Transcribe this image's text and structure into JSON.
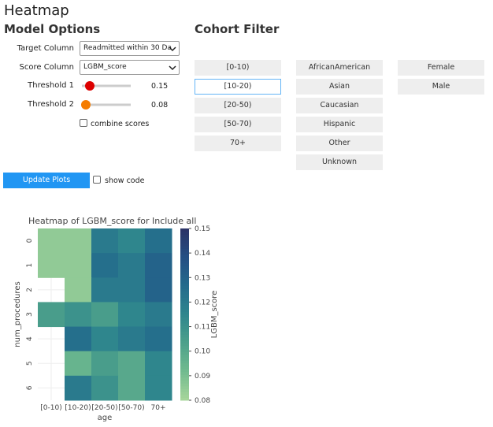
{
  "header": {
    "title": "Heatmap"
  },
  "model_options": {
    "title": "Model Options",
    "target_label": "Target Column",
    "target_value": "Readmitted within 30 Da",
    "score_label": "Score Column",
    "score_value": "LGBM_score",
    "threshold1_label": "Threshold 1",
    "threshold1_value": 0.15,
    "threshold2_label": "Threshold 2",
    "threshold2_value": 0.08,
    "combine_label": "combine scores"
  },
  "cohort_filter": {
    "title": "Cohort Filter",
    "columns": [
      [
        "[0-10)",
        "[10-20)",
        "[20-50)",
        "[50-70)",
        "70+"
      ],
      [
        "AfricanAmerican",
        "Asian",
        "Caucasian",
        "Hispanic",
        "Other",
        "Unknown"
      ],
      [
        "Female",
        "Male"
      ]
    ]
  },
  "actions": {
    "update_button": "Update Plots",
    "show_code": "show code"
  },
  "chart_data": {
    "type": "heatmap",
    "title": "Heatmap of LGBM_score for Include all",
    "x_label": "age",
    "y_label": "num_procedures",
    "colorbar_label": "LGBM_score",
    "categories": [
      "[0-10)",
      "[10-20)",
      "[20-50)",
      "[50-70)",
      "70+"
    ],
    "y_categories": [
      "0",
      "1",
      "2",
      "3",
      "4",
      "5",
      "6"
    ],
    "values": [
      [
        0.085,
        0.085,
        0.12,
        0.115,
        0.125
      ],
      [
        0.085,
        0.085,
        0.125,
        0.12,
        0.13
      ],
      [
        null,
        0.085,
        0.12,
        0.12,
        0.13
      ],
      [
        0.105,
        0.11,
        0.105,
        0.115,
        0.12
      ],
      [
        null,
        0.125,
        0.115,
        0.12,
        0.125
      ],
      [
        null,
        0.095,
        0.105,
        0.1,
        0.115
      ],
      [
        null,
        0.12,
        0.11,
        0.1,
        0.115
      ]
    ],
    "zlim": [
      0.08,
      0.15
    ],
    "zticks": [
      0.08,
      0.09,
      {
        "value": 0.1,
        "label": "0.10"
      },
      0.11,
      0.12,
      0.13,
      0.14,
      0.15
    ],
    "colorscale": [
      "#a8d69b",
      "#72bb8f",
      "#4da18b",
      "#2f868d",
      "#236b8c",
      "#254f84",
      "#2b3366"
    ]
  }
}
